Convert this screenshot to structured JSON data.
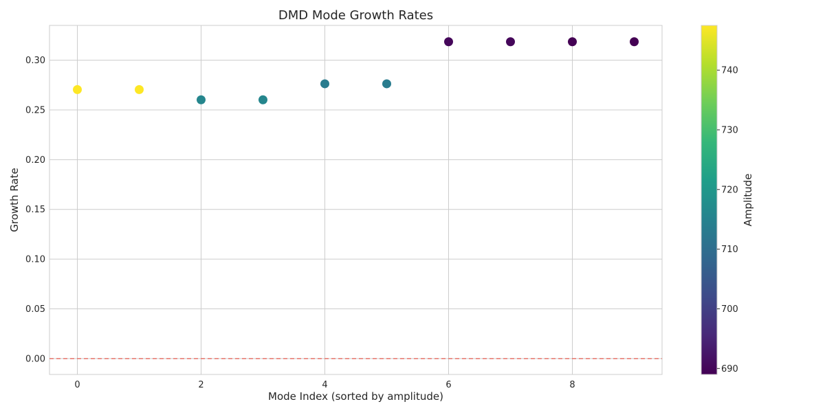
{
  "chart_data": {
    "type": "scatter",
    "title": "DMD Mode Growth Rates",
    "xlabel": "Mode Index (sorted by amplitude)",
    "ylabel": "Growth Rate",
    "x": [
      0,
      1,
      2,
      3,
      4,
      5,
      6,
      7,
      8,
      9
    ],
    "y": [
      0.2705,
      0.2705,
      0.2602,
      0.2602,
      0.2763,
      0.2763,
      0.3186,
      0.3186,
      0.3186,
      0.3186
    ],
    "color_values": [
      747.5,
      747.5,
      716,
      716,
      713.5,
      713.5,
      690,
      690,
      689,
      689
    ],
    "xlim": [
      -0.45,
      9.45
    ],
    "ylim": [
      -0.016,
      0.335
    ],
    "x_ticks": [
      0,
      2,
      4,
      6,
      8
    ],
    "x_tick_labels": [
      "0",
      "2",
      "4",
      "6",
      "8"
    ],
    "y_ticks": [
      0.0,
      0.05,
      0.1,
      0.15,
      0.2,
      0.25,
      0.3
    ],
    "y_tick_labels": [
      "0.00",
      "0.05",
      "0.10",
      "0.15",
      "0.20",
      "0.25",
      "0.30"
    ],
    "reference_line": {
      "y": 0,
      "style": "dashed",
      "color": "#e8756a"
    },
    "grid": true,
    "colorbar": {
      "label": "Amplitude",
      "colormap": "viridis",
      "range": [
        689,
        747.5
      ],
      "ticks": [
        690,
        700,
        710,
        720,
        730,
        740
      ],
      "tick_labels": [
        "690",
        "700",
        "710",
        "720",
        "730",
        "740"
      ]
    }
  }
}
